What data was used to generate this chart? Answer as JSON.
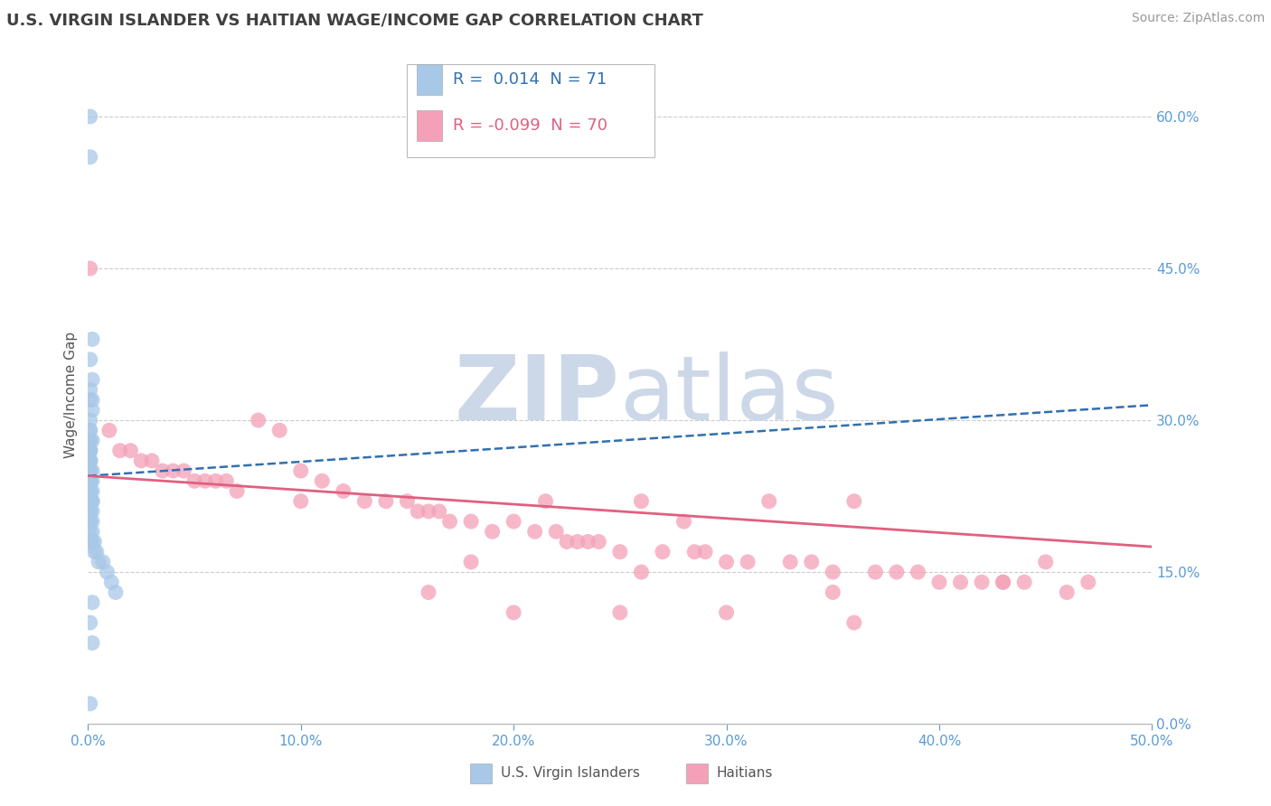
{
  "title": "U.S. VIRGIN ISLANDER VS HAITIAN WAGE/INCOME GAP CORRELATION CHART",
  "source": "Source: ZipAtlas.com",
  "ylabel_label": "Wage/Income Gap",
  "legend_label1": "U.S. Virgin Islanders",
  "legend_label2": "Haitians",
  "R1": 0.014,
  "N1": 71,
  "R2": -0.099,
  "N2": 70,
  "blue_color": "#a8c8e8",
  "pink_color": "#f4a0b8",
  "blue_line_color": "#3070b0",
  "pink_line_color": "#e06080",
  "background_color": "#ffffff",
  "grid_color": "#cccccc",
  "watermark_color": "#ccd8e8",
  "title_color": "#404040",
  "tick_color": "#5b9bd5",
  "xlim": [
    0,
    0.5
  ],
  "ylim": [
    0,
    0.65
  ],
  "blue_scatter_x": [
    0.001,
    0.001,
    0.002,
    0.001,
    0.002,
    0.001,
    0.002,
    0.001,
    0.002,
    0.001,
    0.001,
    0.001,
    0.001,
    0.001,
    0.002,
    0.001,
    0.001,
    0.001,
    0.001,
    0.001,
    0.001,
    0.001,
    0.001,
    0.001,
    0.001,
    0.001,
    0.001,
    0.001,
    0.001,
    0.001,
    0.002,
    0.001,
    0.001,
    0.001,
    0.002,
    0.001,
    0.001,
    0.002,
    0.001,
    0.001,
    0.001,
    0.001,
    0.001,
    0.002,
    0.001,
    0.001,
    0.002,
    0.001,
    0.002,
    0.001,
    0.001,
    0.001,
    0.001,
    0.002,
    0.001,
    0.001,
    0.002,
    0.001,
    0.003,
    0.002,
    0.003,
    0.004,
    0.005,
    0.007,
    0.009,
    0.011,
    0.013,
    0.002,
    0.001,
    0.002,
    0.001
  ],
  "blue_scatter_y": [
    0.6,
    0.56,
    0.38,
    0.36,
    0.34,
    0.33,
    0.32,
    0.32,
    0.31,
    0.3,
    0.29,
    0.29,
    0.28,
    0.28,
    0.28,
    0.27,
    0.27,
    0.27,
    0.27,
    0.26,
    0.26,
    0.26,
    0.26,
    0.26,
    0.25,
    0.25,
    0.25,
    0.25,
    0.25,
    0.25,
    0.25,
    0.24,
    0.24,
    0.24,
    0.24,
    0.24,
    0.24,
    0.23,
    0.23,
    0.23,
    0.23,
    0.23,
    0.22,
    0.22,
    0.22,
    0.22,
    0.22,
    0.22,
    0.21,
    0.21,
    0.21,
    0.21,
    0.2,
    0.2,
    0.2,
    0.19,
    0.19,
    0.18,
    0.18,
    0.18,
    0.17,
    0.17,
    0.16,
    0.16,
    0.15,
    0.14,
    0.13,
    0.12,
    0.1,
    0.08,
    0.02
  ],
  "pink_scatter_x": [
    0.001,
    0.01,
    0.015,
    0.02,
    0.025,
    0.03,
    0.035,
    0.04,
    0.045,
    0.05,
    0.055,
    0.06,
    0.065,
    0.07,
    0.08,
    0.09,
    0.1,
    0.11,
    0.12,
    0.13,
    0.14,
    0.15,
    0.155,
    0.16,
    0.165,
    0.17,
    0.18,
    0.19,
    0.2,
    0.21,
    0.215,
    0.22,
    0.225,
    0.23,
    0.235,
    0.24,
    0.25,
    0.26,
    0.27,
    0.28,
    0.285,
    0.29,
    0.3,
    0.31,
    0.32,
    0.33,
    0.34,
    0.35,
    0.36,
    0.37,
    0.38,
    0.39,
    0.4,
    0.41,
    0.42,
    0.43,
    0.44,
    0.45,
    0.46,
    0.47,
    0.16,
    0.2,
    0.25,
    0.3,
    0.36,
    0.1,
    0.18,
    0.26,
    0.35,
    0.43
  ],
  "pink_scatter_y": [
    0.45,
    0.29,
    0.27,
    0.27,
    0.26,
    0.26,
    0.25,
    0.25,
    0.25,
    0.24,
    0.24,
    0.24,
    0.24,
    0.23,
    0.3,
    0.29,
    0.25,
    0.24,
    0.23,
    0.22,
    0.22,
    0.22,
    0.21,
    0.21,
    0.21,
    0.2,
    0.2,
    0.19,
    0.2,
    0.19,
    0.22,
    0.19,
    0.18,
    0.18,
    0.18,
    0.18,
    0.17,
    0.22,
    0.17,
    0.2,
    0.17,
    0.17,
    0.16,
    0.16,
    0.22,
    0.16,
    0.16,
    0.15,
    0.22,
    0.15,
    0.15,
    0.15,
    0.14,
    0.14,
    0.14,
    0.14,
    0.14,
    0.16,
    0.13,
    0.14,
    0.13,
    0.11,
    0.11,
    0.11,
    0.1,
    0.22,
    0.16,
    0.15,
    0.13,
    0.14
  ]
}
